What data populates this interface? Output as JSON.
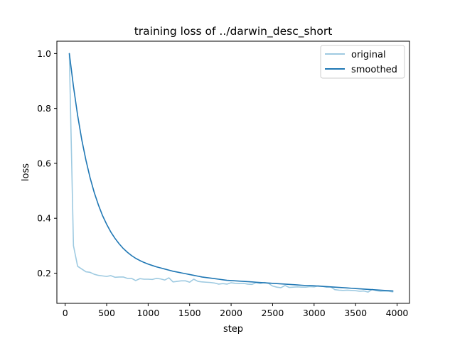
{
  "chart_data": {
    "type": "line",
    "title": "training loss of ../darwin_desc_short",
    "xlabel": "step",
    "ylabel": "loss",
    "xlim": [
      -100,
      4150
    ],
    "ylim": [
      0.09,
      1.045
    ],
    "xticks": [
      0,
      500,
      1000,
      1500,
      2000,
      2500,
      3000,
      3500,
      4000
    ],
    "yticks": [
      0.2,
      0.4,
      0.6,
      0.8,
      1.0
    ],
    "ytick_labels": [
      "0.2",
      "0.4",
      "0.6",
      "0.8",
      "1.0"
    ],
    "grid": false,
    "legend_position": "top-right",
    "series": [
      {
        "name": "original",
        "color": "#9ecae1",
        "x": [
          50,
          100,
          150,
          200,
          250,
          300,
          350,
          400,
          450,
          500,
          550,
          600,
          650,
          700,
          750,
          800,
          850,
          900,
          950,
          1000,
          1050,
          1100,
          1150,
          1200,
          1250,
          1300,
          1350,
          1400,
          1450,
          1500,
          1550,
          1600,
          1650,
          1700,
          1750,
          1800,
          1850,
          1900,
          1950,
          2000,
          2050,
          2100,
          2150,
          2200,
          2250,
          2300,
          2350,
          2400,
          2450,
          2500,
          2550,
          2600,
          2650,
          2700,
          2750,
          2800,
          2850,
          2900,
          2950,
          3000,
          3050,
          3100,
          3150,
          3200,
          3250,
          3300,
          3350,
          3400,
          3450,
          3500,
          3550,
          3600,
          3650,
          3700,
          3750,
          3800,
          3850,
          3900,
          3950
        ],
        "y": [
          1.0,
          0.3,
          0.225,
          0.215,
          0.205,
          0.203,
          0.196,
          0.192,
          0.19,
          0.188,
          0.191,
          0.185,
          0.186,
          0.186,
          0.181,
          0.181,
          0.173,
          0.18,
          0.178,
          0.178,
          0.177,
          0.181,
          0.179,
          0.175,
          0.183,
          0.168,
          0.17,
          0.172,
          0.172,
          0.167,
          0.178,
          0.17,
          0.168,
          0.167,
          0.166,
          0.164,
          0.16,
          0.162,
          0.16,
          0.165,
          0.163,
          0.162,
          0.163,
          0.16,
          0.159,
          0.165,
          0.162,
          0.166,
          0.163,
          0.153,
          0.149,
          0.147,
          0.155,
          0.148,
          0.149,
          0.15,
          0.149,
          0.149,
          0.151,
          0.15,
          0.154,
          0.152,
          0.149,
          0.15,
          0.14,
          0.138,
          0.137,
          0.138,
          0.137,
          0.136,
          0.134,
          0.135,
          0.131,
          0.141,
          0.136,
          0.134,
          0.135,
          0.134,
          0.132
        ]
      },
      {
        "name": "smoothed",
        "color": "#1f77b4",
        "x": [
          50,
          100,
          150,
          200,
          250,
          300,
          350,
          400,
          450,
          500,
          550,
          600,
          650,
          700,
          750,
          800,
          850,
          900,
          950,
          1000,
          1050,
          1100,
          1150,
          1200,
          1250,
          1300,
          1350,
          1400,
          1450,
          1500,
          1550,
          1600,
          1650,
          1700,
          1750,
          1800,
          1850,
          1900,
          1950,
          2000,
          2050,
          2100,
          2150,
          2200,
          2250,
          2300,
          2350,
          2400,
          2450,
          2500,
          2550,
          2600,
          2650,
          2700,
          2750,
          2800,
          2850,
          2900,
          2950,
          3000,
          3050,
          3100,
          3150,
          3200,
          3250,
          3300,
          3350,
          3400,
          3450,
          3500,
          3550,
          3600,
          3650,
          3700,
          3750,
          3800,
          3850,
          3900,
          3950
        ],
        "y": [
          1.0,
          0.88,
          0.775,
          0.686,
          0.612,
          0.548,
          0.494,
          0.449,
          0.41,
          0.378,
          0.35,
          0.327,
          0.307,
          0.29,
          0.276,
          0.264,
          0.254,
          0.246,
          0.239,
          0.233,
          0.228,
          0.223,
          0.219,
          0.215,
          0.211,
          0.207,
          0.204,
          0.201,
          0.198,
          0.195,
          0.192,
          0.189,
          0.186,
          0.184,
          0.182,
          0.18,
          0.178,
          0.176,
          0.174,
          0.173,
          0.172,
          0.171,
          0.17,
          0.169,
          0.168,
          0.167,
          0.166,
          0.165,
          0.164,
          0.163,
          0.162,
          0.161,
          0.16,
          0.159,
          0.158,
          0.157,
          0.156,
          0.155,
          0.155,
          0.154,
          0.153,
          0.152,
          0.151,
          0.15,
          0.149,
          0.148,
          0.147,
          0.146,
          0.145,
          0.144,
          0.143,
          0.142,
          0.141,
          0.14,
          0.139,
          0.138,
          0.137,
          0.136,
          0.135
        ]
      }
    ]
  }
}
